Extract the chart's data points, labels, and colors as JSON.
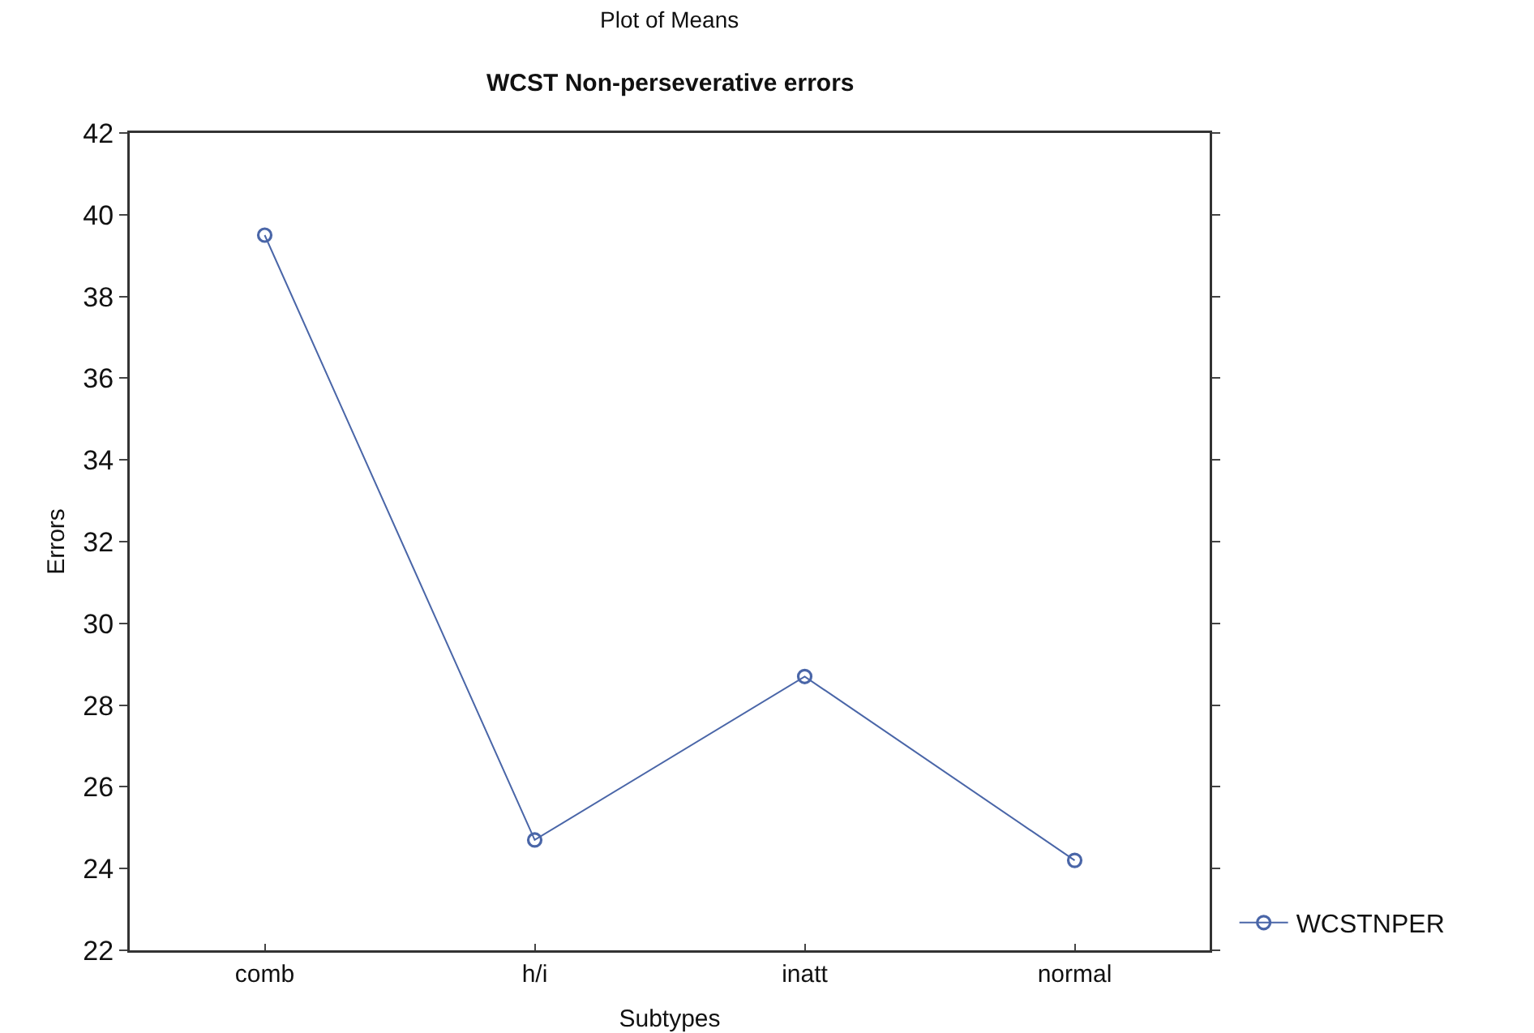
{
  "chart_data": {
    "type": "line",
    "title": "Plot of Means",
    "subtitle": "WCST Non-perseverative errors",
    "xlabel": "Subtypes",
    "ylabel": "Errors",
    "categories": [
      "comb",
      "h/i",
      "inatt",
      "normal"
    ],
    "series": [
      {
        "name": "WCSTNPER",
        "color": "#4a66a8",
        "values": [
          39.5,
          24.7,
          28.7,
          24.2
        ]
      }
    ],
    "ylim": [
      22,
      42
    ],
    "yticks": [
      22,
      24,
      26,
      28,
      30,
      32,
      34,
      36,
      38,
      40,
      42
    ],
    "grid": false,
    "legend": "bottom right",
    "marker": "circle",
    "line_style": "solid"
  }
}
